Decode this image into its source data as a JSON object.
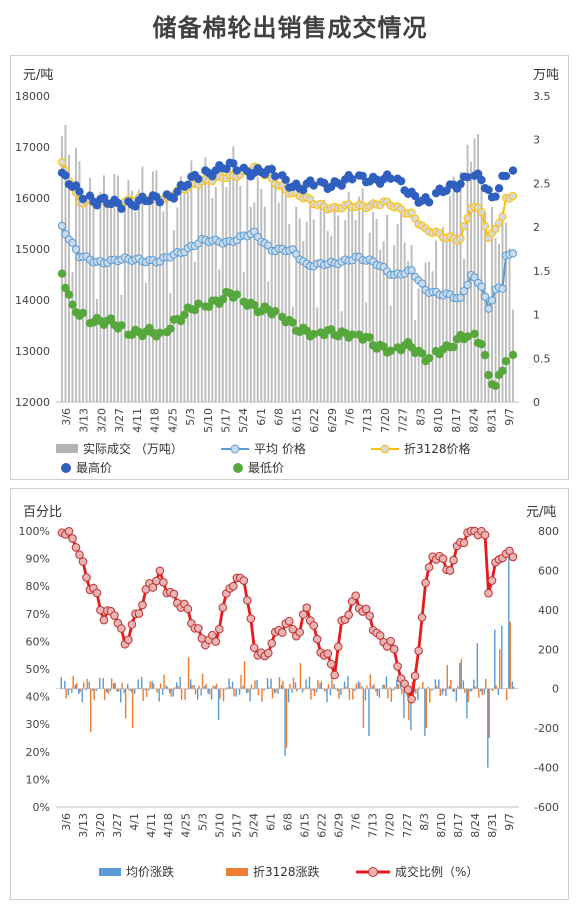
{
  "page_title": "储备棉轮出销售成交情况",
  "colors": {
    "volume": "#b3b3b3",
    "avg": "#5b9bd5",
    "avg_fill": "#c9dbeb",
    "zhe": "#ffc000",
    "zhe_fill": "#d8d8d8",
    "high": "#2f5fbf",
    "low": "#57a83c",
    "ratio": "#e81919",
    "ratio_fill": "#e8b4b4",
    "avg_change": "#5b9bd5",
    "zhe_change": "#ed7d31"
  },
  "chart_data": [
    {
      "type": "line",
      "left_unit": "元/吨",
      "right_unit": "万吨",
      "x_tick_labels": [
        "3/6",
        "3/13",
        "3/20",
        "3/27",
        "4/11",
        "4/18",
        "4/25",
        "5/3",
        "5/10",
        "5/17",
        "5/24",
        "6/1",
        "6/8",
        "6/15",
        "6/22",
        "6/29",
        "7/6",
        "7/13",
        "7/20",
        "7/27",
        "8/3",
        "8/10",
        "8/17",
        "8/24",
        "8/31",
        "9/7"
      ],
      "ylim_left": [
        12000,
        18000
      ],
      "y_ticks_left": [
        "12000",
        "13000",
        "14000",
        "15000",
        "16000",
        "17000",
        "18000"
      ],
      "ylim_right": [
        0,
        3.5
      ],
      "y_ticks_right": [
        "0",
        "0.5",
        "1",
        "1.5",
        "2",
        "2.5",
        "3",
        "3.5"
      ],
      "legend": [
        "实际成交 （万吨）",
        "平均 价格",
        "折3128价格",
        "最高价",
        "最低价"
      ],
      "series": [
        {
          "name": "最高价",
          "key": "high",
          "anchors": [
            [
              0,
              16400
            ],
            [
              4,
              16200
            ],
            [
              10,
              15900
            ],
            [
              22,
              15900
            ],
            [
              33,
              16100
            ],
            [
              40,
              16500
            ],
            [
              48,
              16600
            ],
            [
              58,
              16500
            ],
            [
              63,
              16400
            ],
            [
              68,
              16200
            ],
            [
              78,
              16300
            ],
            [
              88,
              16400
            ],
            [
              95,
              16350
            ],
            [
              100,
              16100
            ],
            [
              105,
              15900
            ],
            [
              110,
              16200
            ],
            [
              116,
              16400
            ],
            [
              120,
              16350
            ],
            [
              123,
              16000
            ],
            [
              126,
              16400
            ],
            [
              129,
              16500
            ]
          ]
        },
        {
          "name": "平均 价格",
          "key": "avg",
          "anchors": [
            [
              0,
              15450
            ],
            [
              5,
              14850
            ],
            [
              10,
              14750
            ],
            [
              22,
              14800
            ],
            [
              28,
              14750
            ],
            [
              34,
              14950
            ],
            [
              40,
              15150
            ],
            [
              48,
              15150
            ],
            [
              55,
              15300
            ],
            [
              60,
              15000
            ],
            [
              66,
              14950
            ],
            [
              70,
              14700
            ],
            [
              78,
              14700
            ],
            [
              84,
              14850
            ],
            [
              90,
              14700
            ],
            [
              95,
              14500
            ],
            [
              100,
              14550
            ],
            [
              104,
              14200
            ],
            [
              110,
              14100
            ],
            [
              114,
              14000
            ],
            [
              117,
              14500
            ],
            [
              120,
              14300
            ],
            [
              122,
              13800
            ],
            [
              124,
              14200
            ],
            [
              126,
              14200
            ],
            [
              127,
              14900
            ]
          ]
        },
        {
          "name": "折3128价格",
          "key": "zhe",
          "anchors": [
            [
              0,
              16650
            ],
            [
              5,
              15950
            ],
            [
              12,
              15900
            ],
            [
              20,
              15950
            ],
            [
              30,
              16000
            ],
            [
              40,
              16350
            ],
            [
              48,
              16400
            ],
            [
              55,
              16600
            ],
            [
              60,
              16350
            ],
            [
              66,
              16100
            ],
            [
              72,
              15900
            ],
            [
              78,
              15800
            ],
            [
              86,
              15850
            ],
            [
              92,
              15900
            ],
            [
              98,
              15750
            ],
            [
              100,
              15700
            ],
            [
              104,
              15350
            ],
            [
              110,
              15250
            ],
            [
              114,
              15200
            ],
            [
              117,
              15800
            ],
            [
              120,
              15750
            ],
            [
              122,
              15200
            ],
            [
              124,
              15450
            ],
            [
              126,
              15600
            ],
            [
              127,
              16000
            ]
          ]
        },
        {
          "name": "最低价",
          "key": "low",
          "anchors": [
            [
              0,
              14500
            ],
            [
              3,
              13800
            ],
            [
              10,
              13600
            ],
            [
              20,
              13400
            ],
            [
              28,
              13300
            ],
            [
              32,
              13600
            ],
            [
              40,
              13900
            ],
            [
              48,
              14100
            ],
            [
              55,
              13900
            ],
            [
              62,
              13700
            ],
            [
              67,
              13500
            ],
            [
              72,
              13300
            ],
            [
              78,
              13400
            ],
            [
              84,
              13300
            ],
            [
              88,
              13200
            ],
            [
              95,
              13000
            ],
            [
              100,
              13100
            ],
            [
              104,
              12900
            ],
            [
              110,
              13000
            ],
            [
              114,
              13300
            ],
            [
              117,
              13400
            ],
            [
              120,
              13100
            ],
            [
              122,
              12500
            ],
            [
              124,
              12300
            ],
            [
              126,
              12700
            ],
            [
              127,
              12900
            ]
          ]
        },
        {
          "name": "实际成交 （万吨）",
          "key": "volume",
          "anchors": [
            [
              0,
              2.9
            ],
            [
              6,
              2.6
            ],
            [
              12,
              2.3
            ],
            [
              20,
              2.5
            ],
            [
              32,
              2.3
            ],
            [
              40,
              2.7
            ],
            [
              48,
              2.6
            ],
            [
              56,
              2.5
            ],
            [
              64,
              2.3
            ],
            [
              72,
              2.0
            ],
            [
              80,
              2.2
            ],
            [
              90,
              2.1
            ],
            [
              98,
              1.8
            ],
            [
              104,
              1.5
            ],
            [
              110,
              2.0
            ],
            [
              114,
              2.9
            ],
            [
              118,
              3.0
            ],
            [
              122,
              2.0
            ],
            [
              126,
              2.1
            ],
            [
              129,
              2.0
            ]
          ]
        }
      ]
    },
    {
      "type": "bar",
      "left_unit": "百分比",
      "right_unit": "元/吨",
      "x_tick_labels": [
        "3/6",
        "3/13",
        "3/20",
        "3/27",
        "4/1",
        "4/11",
        "4/18",
        "4/25",
        "5/3",
        "5/10",
        "5/17",
        "5/24",
        "6/1",
        "6/8",
        "6/15",
        "6/22",
        "6/29",
        "7/6",
        "7/13",
        "7/20",
        "7/27",
        "8/3",
        "8/10",
        "8/17",
        "8/24",
        "8/31",
        "9/7"
      ],
      "ylim_left": [
        0,
        100
      ],
      "y_ticks_left": [
        "0%",
        "10%",
        "20%",
        "30%",
        "40%",
        "50%",
        "60%",
        "70%",
        "80%",
        "90%",
        "100%"
      ],
      "ylim_right": [
        -600,
        800
      ],
      "y_ticks_right": [
        "-600",
        "-400",
        "-200",
        "0",
        "200",
        "400",
        "600",
        "800"
      ],
      "legend": [
        "均价涨跌",
        "折3128涨跌",
        "成交比例（%）"
      ],
      "ratio_anchors": [
        [
          0,
          100
        ],
        [
          4,
          97
        ],
        [
          6,
          88
        ],
        [
          8,
          80
        ],
        [
          10,
          75
        ],
        [
          12,
          68
        ],
        [
          15,
          72
        ],
        [
          18,
          60
        ],
        [
          22,
          70
        ],
        [
          25,
          80
        ],
        [
          28,
          85
        ],
        [
          32,
          75
        ],
        [
          36,
          70
        ],
        [
          40,
          62
        ],
        [
          44,
          60
        ],
        [
          48,
          80
        ],
        [
          50,
          82
        ],
        [
          52,
          85
        ],
        [
          55,
          58
        ],
        [
          58,
          52
        ],
        [
          60,
          60
        ],
        [
          64,
          68
        ],
        [
          68,
          62
        ],
        [
          70,
          72
        ],
        [
          73,
          60
        ],
        [
          76,
          55
        ],
        [
          78,
          50
        ],
        [
          80,
          65
        ],
        [
          84,
          75
        ],
        [
          88,
          70
        ],
        [
          91,
          60
        ],
        [
          94,
          58
        ],
        [
          96,
          52
        ],
        [
          98,
          44
        ],
        [
          100,
          42
        ],
        [
          102,
          55
        ],
        [
          104,
          82
        ],
        [
          106,
          88
        ],
        [
          108,
          92
        ],
        [
          110,
          86
        ],
        [
          114,
          96
        ],
        [
          118,
          100
        ],
        [
          121,
          98
        ],
        [
          122,
          80
        ],
        [
          124,
          88
        ],
        [
          126,
          92
        ],
        [
          128,
          90
        ]
      ],
      "avg_change_spikes": [
        [
          45,
          -160
        ],
        [
          64,
          -340
        ],
        [
          88,
          -240
        ],
        [
          98,
          -150
        ],
        [
          100,
          -210
        ],
        [
          104,
          -240
        ],
        [
          114,
          130
        ],
        [
          116,
          -150
        ],
        [
          119,
          230
        ],
        [
          122,
          -400
        ],
        [
          124,
          300
        ],
        [
          126,
          320
        ],
        [
          128,
          680
        ]
      ],
      "zhe_change_spikes": [
        [
          8,
          -220
        ],
        [
          18,
          -150
        ],
        [
          20,
          -200
        ],
        [
          36,
          160
        ],
        [
          52,
          140
        ],
        [
          64,
          -300
        ],
        [
          68,
          130
        ],
        [
          86,
          -200
        ],
        [
          99,
          -160
        ],
        [
          104,
          -200
        ],
        [
          110,
          120
        ],
        [
          114,
          150
        ],
        [
          122,
          -250
        ],
        [
          125,
          200
        ],
        [
          128,
          340
        ]
      ]
    }
  ]
}
